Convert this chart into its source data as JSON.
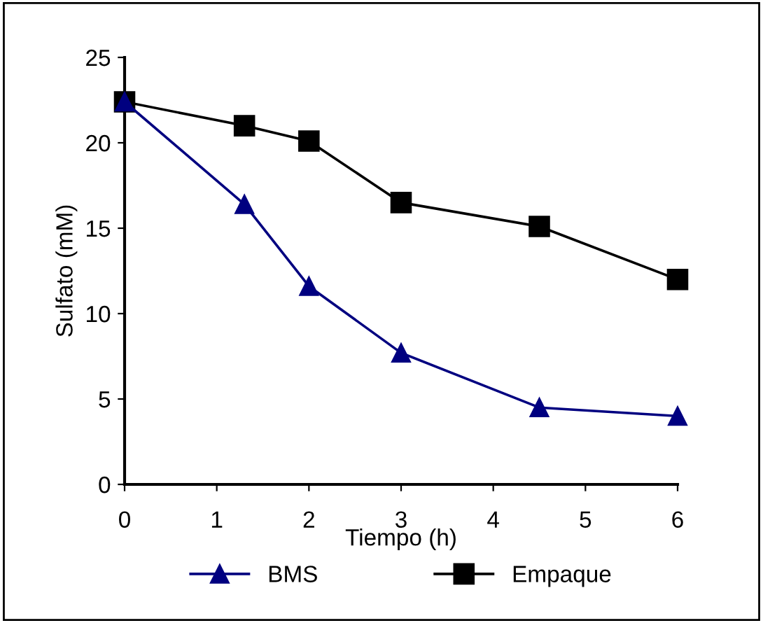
{
  "chart_data": {
    "type": "line",
    "xlabel": "Tiempo (h)",
    "ylabel": "Sulfato (mM)",
    "xlim": [
      0,
      6
    ],
    "xticks": [
      0,
      1,
      2,
      3,
      4,
      5,
      6
    ],
    "ylim": [
      0,
      25
    ],
    "yticks": [
      0,
      5,
      10,
      15,
      20,
      25
    ],
    "grid": false,
    "legend": "bottom",
    "series": [
      {
        "name": "BMS",
        "color": "#000080",
        "marker": "triangle",
        "x": [
          0,
          1.3,
          2,
          3,
          4.5,
          6
        ],
        "values": [
          22.4,
          16.4,
          11.6,
          7.7,
          4.5,
          4.0
        ]
      },
      {
        "name": "Empaque",
        "color": "#000000",
        "marker": "square",
        "x": [
          0,
          1.3,
          2,
          3,
          4.5,
          6
        ],
        "values": [
          22.4,
          21.0,
          20.1,
          16.5,
          15.1,
          12.0
        ]
      }
    ]
  }
}
